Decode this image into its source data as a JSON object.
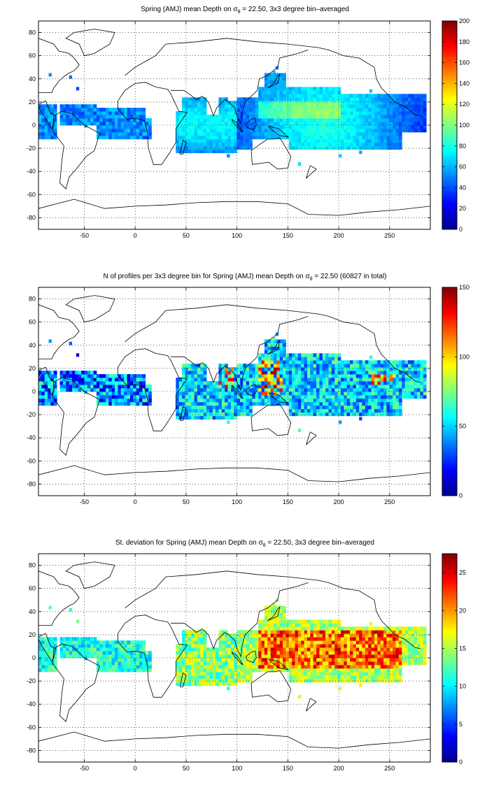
{
  "panels": [
    {
      "title_pre": "Spring (AMJ) mean Depth on ",
      "title_sigma": "σ",
      "title_sub": "θ",
      "title_post": " = 22.50, 3x3 degree bin–averaged",
      "colorbar": {
        "min": 0,
        "max": 200,
        "ticks": [
          0,
          20,
          40,
          60,
          80,
          100,
          120,
          140,
          160,
          180,
          200
        ]
      },
      "field": "depth"
    },
    {
      "title_pre": "N of profiles per 3x3 degree bin for Spring (AMJ) mean Depth on ",
      "title_sigma": "σ",
      "title_sub": "θ",
      "title_post": " = 22.50 (60827 in total)",
      "colorbar": {
        "min": 0,
        "max": 150,
        "ticks": [
          0,
          50,
          100,
          150
        ]
      },
      "field": "count"
    },
    {
      "title_pre": "St. deviation for Spring (AMJ) mean Depth on ",
      "title_sigma": "σ",
      "title_sub": "θ",
      "title_post": " = 22.50, 3x3 degree bin–averaged",
      "colorbar": {
        "min": 0,
        "max": 27.5,
        "ticks": [
          0,
          5,
          10,
          15,
          20,
          25
        ]
      },
      "field": "std"
    }
  ],
  "axes": {
    "x_range": [
      -95,
      290
    ],
    "y_range": [
      -90,
      90
    ],
    "x_ticks": [
      -50,
      0,
      50,
      100,
      150,
      200,
      250
    ],
    "y_ticks": [
      -80,
      -60,
      -40,
      -20,
      0,
      20,
      40,
      60,
      80
    ],
    "grid": "dotted"
  },
  "colormap": "jet"
}
